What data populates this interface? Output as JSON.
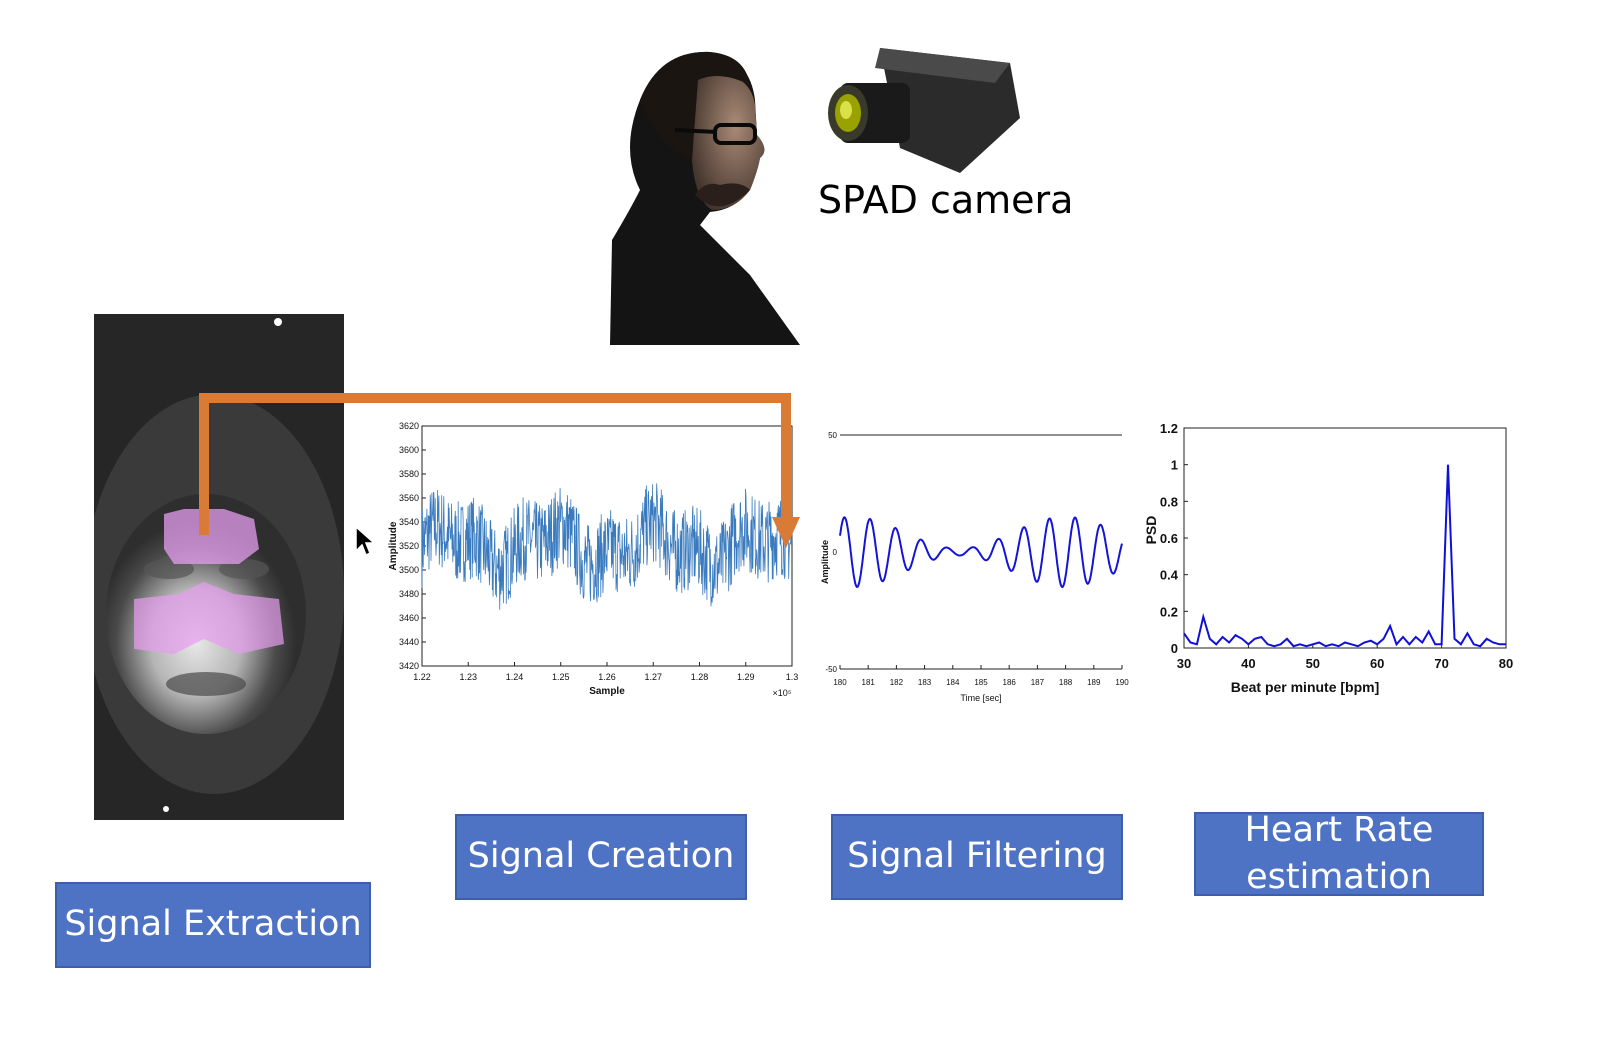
{
  "camera_label": "SPAD camera",
  "stages": {
    "extraction": "Signal Extraction",
    "creation": "Signal Creation",
    "filtering": "Signal Filtering",
    "hr_estimation": "Heart Rate estimation"
  },
  "colors": {
    "box_fill": "#4f73c4",
    "arrow": "#d97b36",
    "roi": "#e59cf0",
    "raw_signal": "#3a7bbf",
    "filtered_signal": "#1414d8",
    "psd_line": "#1010d8"
  },
  "chart_data": [
    {
      "type": "line",
      "id": "raw-signal",
      "xlabel": "Sample",
      "ylabel": "Amplitude",
      "x_multiplier": "×10⁵",
      "xlim": [
        1.22,
        1.3
      ],
      "ylim": [
        3420,
        3620
      ],
      "x_ticks": [
        "1.22",
        "1.23",
        "1.24",
        "1.25",
        "1.26",
        "1.27",
        "1.28",
        "1.29",
        "1.3"
      ],
      "y_ticks": [
        "3620",
        "3600",
        "3580",
        "3560",
        "3540",
        "3520",
        "3500",
        "3480",
        "3460",
        "3440",
        "3420"
      ],
      "series": [
        {
          "mean": 3520,
          "noise_range": [
            3470,
            3570
          ]
        }
      ]
    },
    {
      "type": "line",
      "id": "filtered-signal",
      "xlabel": "Time [sec]",
      "ylabel": "Amplitude",
      "xlim": [
        180,
        190
      ],
      "ylim": [
        -50,
        50
      ],
      "x_ticks": [
        "180",
        "181",
        "182",
        "183",
        "184",
        "185",
        "186",
        "187",
        "188",
        "189",
        "190"
      ],
      "y_ticks": [
        "50",
        "0",
        "-50"
      ],
      "series": [
        {
          "amplitude_range": [
            -15,
            15
          ],
          "cycles": 11
        }
      ]
    },
    {
      "type": "line",
      "id": "psd",
      "xlabel": "Beat per minute [bpm]",
      "ylabel": "PSD",
      "xlim": [
        30,
        80
      ],
      "ylim": [
        0,
        1.2
      ],
      "x_ticks": [
        "30",
        "40",
        "50",
        "60",
        "70",
        "80"
      ],
      "y_ticks": [
        "1.2",
        "1",
        "0.8",
        "0.6",
        "0.4",
        "0.2",
        "0"
      ],
      "series": [
        {
          "x": [
            30,
            31,
            32,
            33,
            34,
            35,
            36,
            37,
            38,
            39,
            40,
            41,
            42,
            43,
            44,
            45,
            46,
            47,
            48,
            49,
            50,
            51,
            52,
            53,
            54,
            55,
            56,
            57,
            58,
            59,
            60,
            61,
            62,
            63,
            64,
            65,
            66,
            67,
            68,
            69,
            70,
            71,
            72,
            73,
            74,
            75,
            76,
            77,
            78,
            79,
            80
          ],
          "y": [
            0.08,
            0.03,
            0.02,
            0.17,
            0.05,
            0.02,
            0.06,
            0.03,
            0.07,
            0.05,
            0.02,
            0.05,
            0.06,
            0.02,
            0.01,
            0.02,
            0.05,
            0.01,
            0.02,
            0.01,
            0.02,
            0.03,
            0.01,
            0.02,
            0.01,
            0.03,
            0.02,
            0.01,
            0.03,
            0.04,
            0.02,
            0.05,
            0.12,
            0.02,
            0.06,
            0.02,
            0.06,
            0.03,
            0.09,
            0.02,
            0.02,
            1.0,
            0.05,
            0.02,
            0.08,
            0.02,
            0.01,
            0.05,
            0.03,
            0.02,
            0.02
          ]
        }
      ]
    }
  ]
}
